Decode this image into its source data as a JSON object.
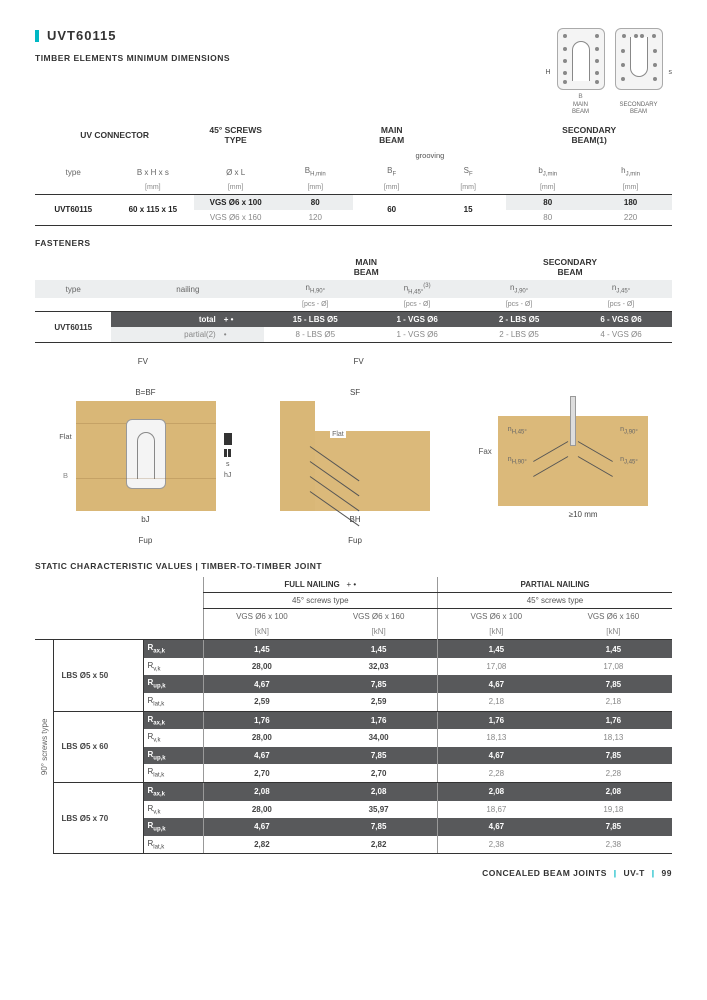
{
  "page": {
    "title": "UVT60115",
    "subtitle": "TIMBER ELEMENTS MINIMUM DIMENSIONS",
    "fasteners_title": "FASTENERS",
    "static_title": "STATIC CHARACTERISTIC VALUES | TIMBER-TO-TIMBER JOINT",
    "footer_cat": "CONCEALED BEAM JOINTS",
    "footer_code": "UV-T",
    "footer_page": "99"
  },
  "diagrams": {
    "h_label": "H",
    "main_b": "B",
    "main_cap": "MAIN\nBEAM",
    "sec_cap": "SECONDARY\nBEAM",
    "side_s": "s"
  },
  "tbl1": {
    "hdr_uvconn": "UV CONNECTOR",
    "hdr_screws": "45° SCREWS\nTYPE",
    "hdr_main": "MAIN\nBEAM",
    "hdr_sec": "SECONDARY\nBEAM(1)",
    "hdr_grooving": "grooving",
    "col_type": "type",
    "col_bhs": "B x H x s",
    "col_ol": "Ø x L",
    "col_bhmin": "BH,min",
    "col_bf": "BF",
    "col_sf": "SF",
    "col_bjmin": "bJ,min",
    "col_hjmin": "hJ,min",
    "unit_mm": "[mm]",
    "row_type": "UVT60115",
    "row_bhs": "60 x 115 x 15",
    "r1_ol": "VGS Ø6 x 100",
    "r1_bhmin": "80",
    "r1_bf": "60",
    "r1_sf": "15",
    "r1_bj": "80",
    "r1_hj": "180",
    "r2_ol": "VGS Ø6 x 160",
    "r2_bhmin": "120",
    "r2_bj": "80",
    "r2_hj": "220"
  },
  "tbl2": {
    "hdr_main": "MAIN\nBEAM",
    "hdr_sec": "SECONDARY\nBEAM",
    "col_type": "type",
    "col_nailing": "nailing",
    "col_nh90": "nH,90°",
    "col_nh45": "nH,45°(3)",
    "col_nj90": "nJ,90°",
    "col_nj45": "nJ,45°",
    "unit_pcs": "[pcs - Ø]",
    "row_type": "UVT60115",
    "r1_nailing": "total",
    "r1_sym": "+ •",
    "r1_nh90": "15 - LBS Ø5",
    "r1_nh45": "1 - VGS Ø6",
    "r1_nj90": "2 - LBS Ø5",
    "r1_nj45": "6 - VGS Ø6",
    "r2_nailing": "partial(2)",
    "r2_sym": "•",
    "r2_nh90": "8 - LBS Ø5",
    "r2_nh45": "1 - VGS Ø6",
    "r2_nj90": "2 - LBS Ø5",
    "r2_nj45": "4 - VGS Ø6"
  },
  "figs": {
    "fv": "FV",
    "fup": "Fup",
    "flat": "Flat",
    "fax": "Fax",
    "bbf": "B=BF",
    "sf": "SF",
    "bh": "BH",
    "bj": "bJ",
    "hj": "hJ",
    "s": "s",
    "b": "B",
    "ge10": "≥10 mm",
    "nh45": "nH,45°",
    "nh90": "nH,90°",
    "nj45": "nJ,45°",
    "nj90": "nJ,90°"
  },
  "static": {
    "hdr_full": "FULL NAILING",
    "hdr_full_sym": "+ •",
    "hdr_partial": "PARTIAL NAILING",
    "hdr_45": "45° screws type",
    "col_v100": "VGS Ø6 x 100",
    "col_v160": "VGS Ø6 x 160",
    "unit_kn": "[kN]",
    "rot": "90° screws type",
    "groups": [
      {
        "name": "LBS Ø5 x 50",
        "rows": [
          {
            "lbl": "Rax,k",
            "v": [
              "1,45",
              "1,45",
              "1,45",
              "1,45"
            ],
            "dark": true
          },
          {
            "lbl": "Rv,k",
            "v": [
              "28,00",
              "32,03",
              "17,08",
              "17,08"
            ],
            "dark": false
          },
          {
            "lbl": "Rup,k",
            "v": [
              "4,67",
              "7,85",
              "4,67",
              "7,85"
            ],
            "dark": true
          },
          {
            "lbl": "Rlat,k",
            "v": [
              "2,59",
              "2,59",
              "2,18",
              "2,18"
            ],
            "dark": false
          }
        ]
      },
      {
        "name": "LBS Ø5 x 60",
        "rows": [
          {
            "lbl": "Rax,k",
            "v": [
              "1,76",
              "1,76",
              "1,76",
              "1,76"
            ],
            "dark": true
          },
          {
            "lbl": "Rv,k",
            "v": [
              "28,00",
              "34,00",
              "18,13",
              "18,13"
            ],
            "dark": false
          },
          {
            "lbl": "Rup,k",
            "v": [
              "4,67",
              "7,85",
              "4,67",
              "7,85"
            ],
            "dark": true
          },
          {
            "lbl": "Rlat,k",
            "v": [
              "2,70",
              "2,70",
              "2,28",
              "2,28"
            ],
            "dark": false
          }
        ]
      },
      {
        "name": "LBS Ø5 x 70",
        "rows": [
          {
            "lbl": "Rax,k",
            "v": [
              "2,08",
              "2,08",
              "2,08",
              "2,08"
            ],
            "dark": true
          },
          {
            "lbl": "Rv,k",
            "v": [
              "28,00",
              "35,97",
              "18,67",
              "19,18"
            ],
            "dark": false
          },
          {
            "lbl": "Rup,k",
            "v": [
              "4,67",
              "7,85",
              "4,67",
              "7,85"
            ],
            "dark": true
          },
          {
            "lbl": "Rlat,k",
            "v": [
              "2,82",
              "2,82",
              "2,38",
              "2,38"
            ],
            "dark": false
          }
        ]
      }
    ]
  },
  "colors": {
    "accent": "#00b8c4",
    "wood": "#d9b777",
    "darkrow": "#58595b",
    "grayrow": "#eceeef"
  }
}
